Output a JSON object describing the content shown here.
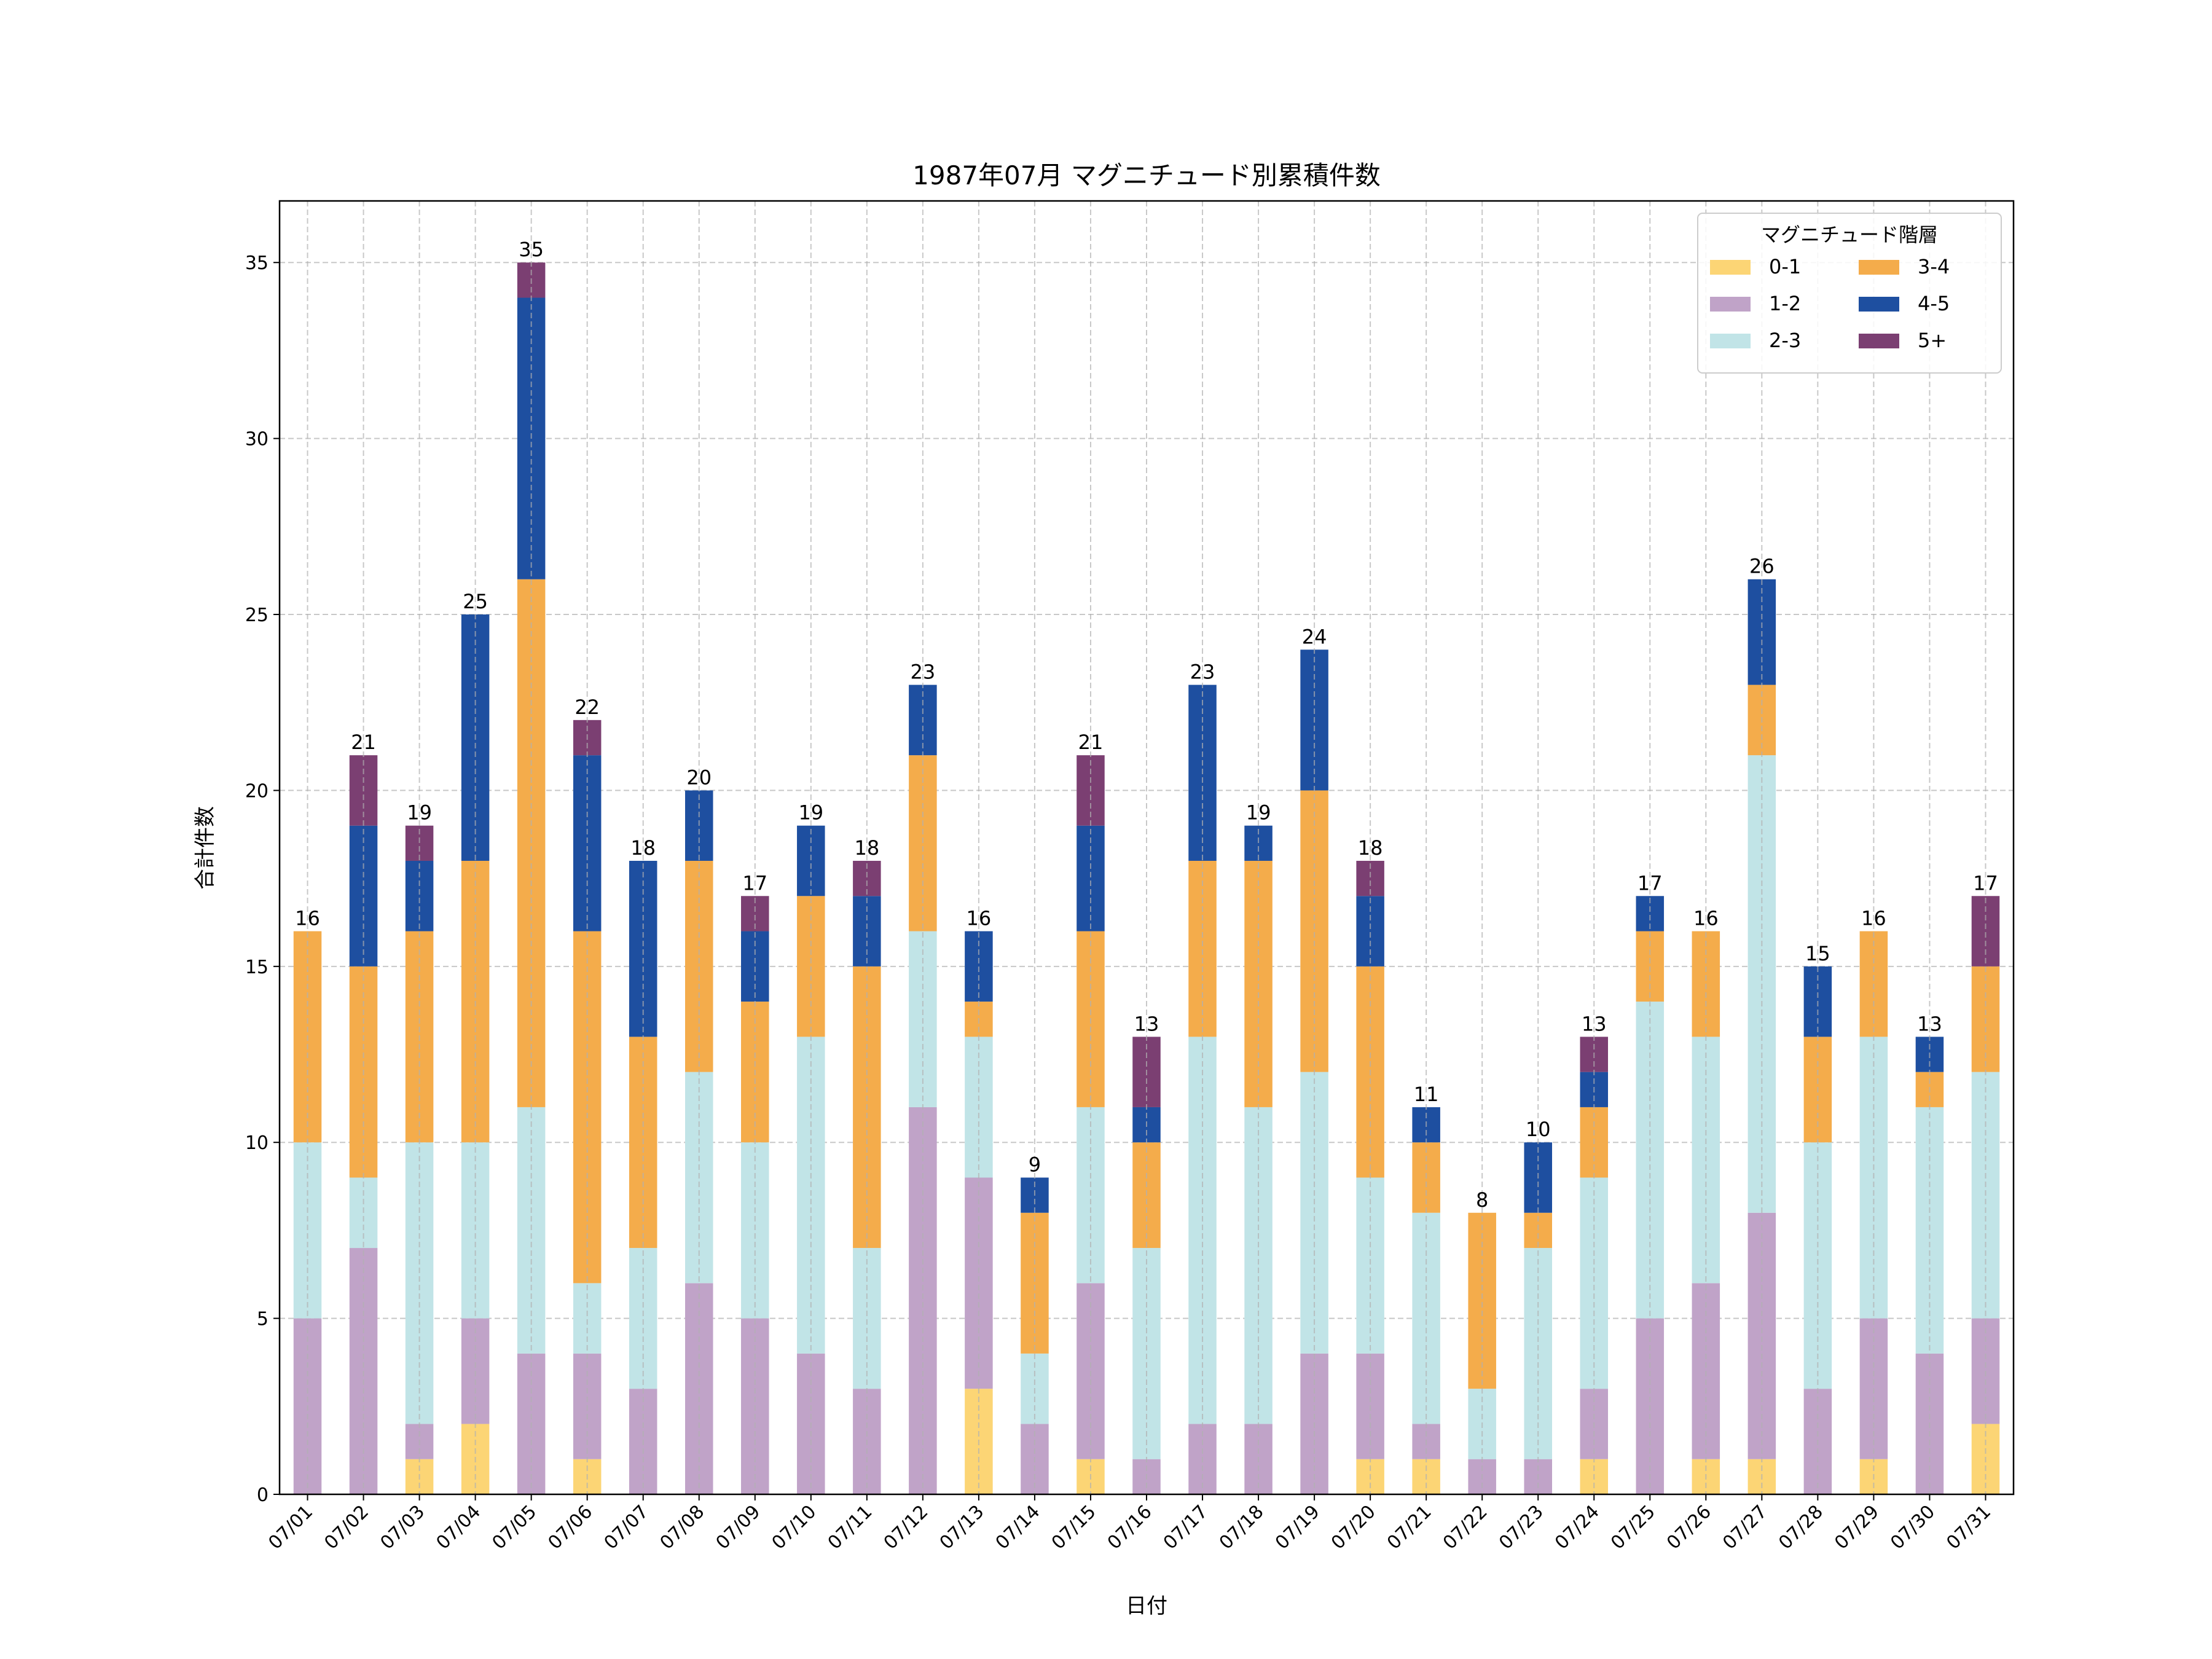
{
  "chart_data": {
    "type": "bar",
    "stacked": true,
    "title": "1987年07月 マグニチュード別累積件数",
    "xlabel": "日付",
    "ylabel": "合計件数",
    "ylim": [
      0,
      36.75
    ],
    "yticks": [
      0,
      5,
      10,
      15,
      20,
      25,
      30,
      35
    ],
    "grid": true,
    "legend": {
      "title": "マグニチュード階層",
      "placement": "top-right",
      "columns": 2
    },
    "categories": [
      "07/01",
      "07/02",
      "07/03",
      "07/04",
      "07/05",
      "07/06",
      "07/07",
      "07/08",
      "07/09",
      "07/10",
      "07/11",
      "07/12",
      "07/13",
      "07/14",
      "07/15",
      "07/16",
      "07/17",
      "07/18",
      "07/19",
      "07/20",
      "07/21",
      "07/22",
      "07/23",
      "07/24",
      "07/25",
      "07/26",
      "07/27",
      "07/28",
      "07/29",
      "07/30",
      "07/31"
    ],
    "series": [
      {
        "name": "0-1",
        "color": "#FCD575",
        "values": [
          0,
          0,
          1,
          2,
          0,
          1,
          0,
          0,
          0,
          0,
          0,
          0,
          3,
          0,
          1,
          0,
          0,
          0,
          0,
          1,
          1,
          0,
          0,
          1,
          0,
          1,
          1,
          0,
          1,
          0,
          2
        ]
      },
      {
        "name": "1-2",
        "color": "#C0A3C8",
        "values": [
          5,
          7,
          1,
          3,
          4,
          3,
          3,
          6,
          5,
          4,
          3,
          11,
          6,
          2,
          5,
          1,
          2,
          2,
          4,
          3,
          1,
          1,
          1,
          2,
          5,
          5,
          7,
          3,
          4,
          4,
          3
        ]
      },
      {
        "name": "2-3",
        "color": "#C1E4E7",
        "values": [
          5,
          2,
          8,
          5,
          7,
          2,
          4,
          6,
          5,
          9,
          4,
          5,
          4,
          2,
          5,
          6,
          11,
          9,
          8,
          5,
          6,
          2,
          6,
          6,
          9,
          7,
          13,
          7,
          8,
          7,
          7
        ]
      },
      {
        "name": "3-4",
        "color": "#F4AC4B",
        "values": [
          6,
          6,
          6,
          8,
          15,
          10,
          6,
          6,
          4,
          4,
          8,
          5,
          1,
          4,
          5,
          3,
          5,
          7,
          8,
          6,
          2,
          5,
          1,
          2,
          2,
          3,
          2,
          3,
          3,
          1,
          3
        ]
      },
      {
        "name": "4-5",
        "color": "#1E4FA0",
        "values": [
          0,
          4,
          2,
          7,
          8,
          5,
          5,
          2,
          2,
          2,
          2,
          2,
          2,
          1,
          3,
          1,
          5,
          1,
          4,
          2,
          1,
          0,
          2,
          1,
          1,
          0,
          3,
          2,
          0,
          1,
          0
        ]
      },
      {
        "name": "5+",
        "color": "#7B3F72",
        "values": [
          0,
          2,
          1,
          0,
          1,
          1,
          0,
          0,
          1,
          0,
          1,
          0,
          0,
          0,
          2,
          2,
          0,
          0,
          0,
          1,
          0,
          0,
          0,
          1,
          0,
          0,
          0,
          0,
          0,
          0,
          2
        ]
      }
    ],
    "totals": [
      "16",
      "21",
      "19",
      "25",
      "35",
      "22",
      "18",
      "20",
      "17",
      "19",
      "18",
      "23",
      "16",
      "9",
      "21",
      "13",
      "23",
      "19",
      "24",
      "18",
      "11",
      "8",
      "10",
      "13",
      "17",
      "16",
      "26",
      "15",
      "16",
      "13",
      "17"
    ]
  }
}
